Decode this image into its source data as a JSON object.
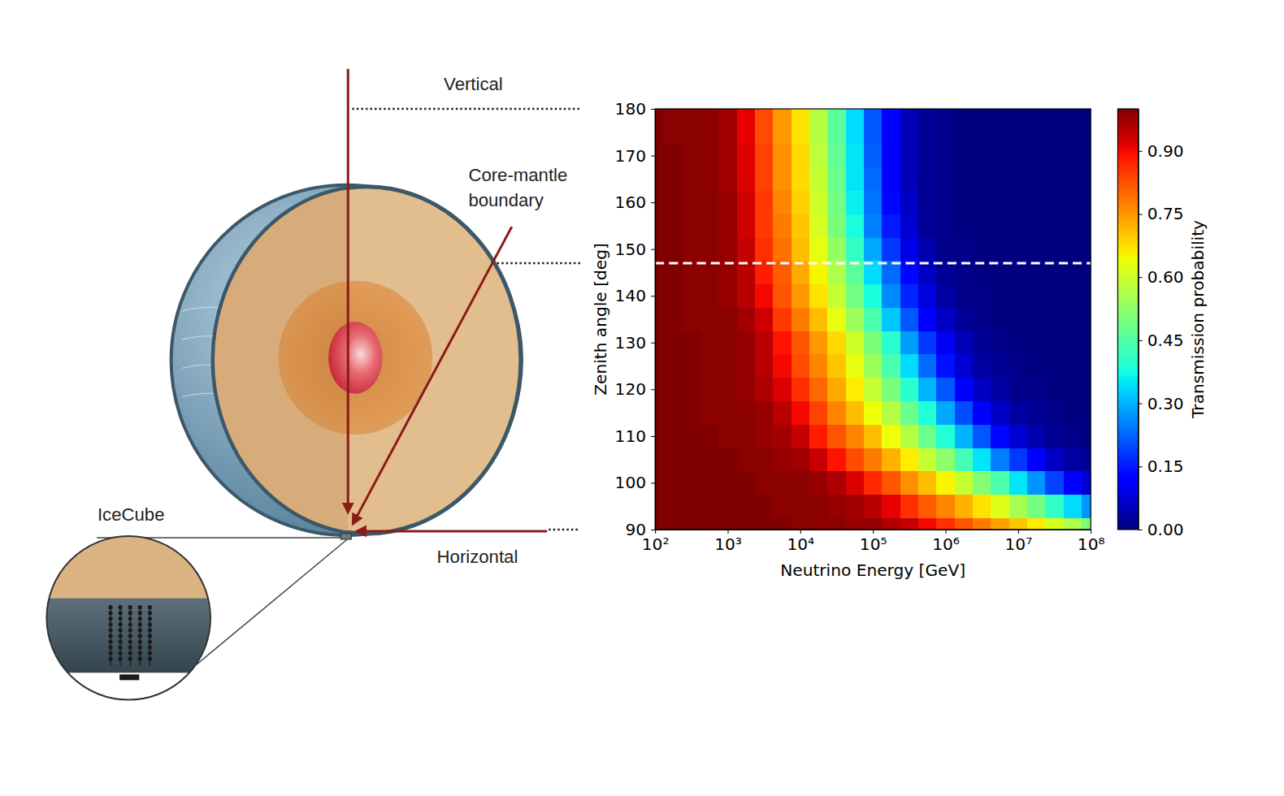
{
  "chart_data": {
    "type": "heatmap",
    "x_label": "Neutrino Energy [GeV]",
    "y_label": "Zenith angle [deg]",
    "log": "x",
    "xlim": [
      100,
      100000000
    ],
    "ylim": [
      90,
      180
    ],
    "xticks": [
      {
        "value": 100,
        "label": "10²"
      },
      {
        "value": 1000,
        "label": "10³"
      },
      {
        "value": 10000,
        "label": "10⁴"
      },
      {
        "value": 100000,
        "label": "10⁵"
      },
      {
        "value": 1000000,
        "label": "10⁶"
      },
      {
        "value": 10000000,
        "label": "10⁷"
      },
      {
        "value": 100000000,
        "label": "10⁸"
      }
    ],
    "yticks": [
      90,
      100,
      110,
      120,
      130,
      140,
      150,
      160,
      170,
      180
    ],
    "x": [
      100,
      177.83,
      316.23,
      562.34,
      1000,
      1778.3,
      3162.3,
      5623.4,
      10000,
      17783,
      31623,
      56234,
      100000,
      177830,
      316230,
      562340,
      1000000,
      1778300,
      3162300,
      5623400,
      10000000,
      17783000,
      31623000,
      56234000,
      100000000
    ],
    "y": [
      90,
      95,
      100,
      105,
      110,
      115,
      120,
      125,
      130,
      135,
      140,
      145,
      150,
      155,
      160,
      165,
      170,
      175,
      180
    ],
    "cells": [
      [
        1,
        1,
        1,
        1,
        1,
        1,
        1,
        1,
        0.99,
        0.99,
        0.99,
        0.98,
        0.98,
        0.96,
        0.94,
        0.9,
        0.86,
        0.82,
        0.78,
        0.74,
        0.7,
        0.66,
        0.61,
        0.56,
        0.5
      ],
      [
        1,
        1,
        1,
        1,
        1,
        1,
        1,
        0.99,
        0.99,
        0.99,
        0.98,
        0.97,
        0.95,
        0.91,
        0.86,
        0.81,
        0.77,
        0.72,
        0.67,
        0.62,
        0.55,
        0.49,
        0.41,
        0.34,
        0.27
      ],
      [
        1,
        1,
        1,
        1,
        1,
        1,
        0.99,
        0.99,
        0.99,
        0.98,
        0.96,
        0.92,
        0.87,
        0.82,
        0.76,
        0.71,
        0.65,
        0.59,
        0.51,
        0.44,
        0.35,
        0.27,
        0.19,
        0.12,
        0.07
      ],
      [
        1,
        1,
        1,
        1,
        1,
        0.99,
        0.99,
        0.98,
        0.97,
        0.94,
        0.89,
        0.83,
        0.78,
        0.72,
        0.66,
        0.59,
        0.52,
        0.43,
        0.35,
        0.25,
        0.18,
        0.11,
        0.06,
        0.03,
        0.02
      ],
      [
        1,
        1,
        1,
        1,
        0.99,
        0.99,
        0.98,
        0.97,
        0.94,
        0.88,
        0.82,
        0.77,
        0.71,
        0.64,
        0.57,
        0.48,
        0.39,
        0.3,
        0.21,
        0.13,
        0.07,
        0.04,
        0.02,
        0.01,
        0
      ],
      [
        1,
        1,
        1,
        0.99,
        0.99,
        0.99,
        0.98,
        0.95,
        0.9,
        0.84,
        0.77,
        0.71,
        0.64,
        0.57,
        0.48,
        0.39,
        0.29,
        0.2,
        0.12,
        0.06,
        0.03,
        0.02,
        0.01,
        0,
        0
      ],
      [
        1,
        1,
        1,
        0.99,
        0.99,
        0.98,
        0.96,
        0.92,
        0.86,
        0.8,
        0.73,
        0.66,
        0.59,
        0.5,
        0.4,
        0.3,
        0.21,
        0.12,
        0.06,
        0.03,
        0.01,
        0.01,
        0,
        0,
        0
      ],
      [
        1,
        1,
        1,
        0.99,
        0.99,
        0.98,
        0.95,
        0.9,
        0.83,
        0.77,
        0.7,
        0.63,
        0.54,
        0.44,
        0.34,
        0.23,
        0.14,
        0.07,
        0.03,
        0.02,
        0.01,
        0,
        0,
        0,
        0
      ],
      [
        1,
        1,
        1,
        0.99,
        0.99,
        0.98,
        0.95,
        0.89,
        0.82,
        0.75,
        0.68,
        0.6,
        0.5,
        0.4,
        0.28,
        0.18,
        0.1,
        0.05,
        0.02,
        0.01,
        0,
        0,
        0,
        0,
        0
      ],
      [
        1,
        1,
        0.99,
        0.99,
        0.99,
        0.97,
        0.93,
        0.85,
        0.78,
        0.71,
        0.63,
        0.54,
        0.44,
        0.32,
        0.21,
        0.12,
        0.06,
        0.02,
        0.01,
        0,
        0,
        0,
        0,
        0,
        0
      ],
      [
        1,
        1,
        0.99,
        0.99,
        0.98,
        0.95,
        0.9,
        0.82,
        0.75,
        0.67,
        0.59,
        0.49,
        0.38,
        0.26,
        0.16,
        0.08,
        0.03,
        0.01,
        0.01,
        0,
        0,
        0,
        0,
        0,
        0
      ],
      [
        1,
        1,
        0.99,
        0.99,
        0.98,
        0.95,
        0.88,
        0.81,
        0.73,
        0.65,
        0.56,
        0.46,
        0.34,
        0.23,
        0.13,
        0.06,
        0.02,
        0.01,
        0,
        0,
        0,
        0,
        0,
        0,
        0
      ],
      [
        1,
        1,
        0.99,
        0.99,
        0.98,
        0.94,
        0.86,
        0.79,
        0.71,
        0.63,
        0.53,
        0.41,
        0.29,
        0.18,
        0.09,
        0.04,
        0.01,
        0.01,
        0,
        0,
        0,
        0,
        0,
        0,
        0
      ],
      [
        1,
        1,
        0.99,
        0.99,
        0.98,
        0.93,
        0.85,
        0.78,
        0.7,
        0.61,
        0.5,
        0.38,
        0.25,
        0.15,
        0.07,
        0.02,
        0.01,
        0,
        0,
        0,
        0,
        0,
        0,
        0,
        0
      ],
      [
        1,
        1,
        0.99,
        0.99,
        0.98,
        0.93,
        0.85,
        0.77,
        0.69,
        0.6,
        0.49,
        0.36,
        0.24,
        0.13,
        0.06,
        0.02,
        0.01,
        0,
        0,
        0,
        0,
        0,
        0,
        0,
        0
      ],
      [
        1,
        1,
        0.99,
        0.99,
        0.97,
        0.92,
        0.84,
        0.76,
        0.68,
        0.59,
        0.48,
        0.35,
        0.23,
        0.12,
        0.05,
        0.02,
        0.01,
        0,
        0,
        0,
        0,
        0,
        0,
        0,
        0
      ],
      [
        1,
        1,
        0.99,
        0.99,
        0.97,
        0.92,
        0.84,
        0.76,
        0.68,
        0.58,
        0.47,
        0.35,
        0.22,
        0.12,
        0.05,
        0.02,
        0.01,
        0,
        0,
        0,
        0,
        0,
        0,
        0,
        0
      ],
      [
        1,
        0.99,
        0.99,
        0.99,
        0.97,
        0.91,
        0.83,
        0.75,
        0.67,
        0.57,
        0.46,
        0.34,
        0.21,
        0.11,
        0.05,
        0.02,
        0.01,
        0,
        0,
        0,
        0,
        0,
        0,
        0,
        0
      ],
      [
        1,
        0.99,
        0.99,
        0.99,
        0.97,
        0.91,
        0.83,
        0.75,
        0.67,
        0.57,
        0.46,
        0.34,
        0.21,
        0.11,
        0.05,
        0.02,
        0.01,
        0,
        0,
        0,
        0,
        0,
        0,
        0,
        0
      ]
    ],
    "core_mantle_boundary_angle": 147,
    "colorbar": {
      "label": "Transmission probability",
      "range": [
        0,
        1
      ],
      "ticks": [
        {
          "value": 0,
          "label": "0.00"
        },
        {
          "value": 0.15,
          "label": "0.15"
        },
        {
          "value": 0.3,
          "label": "0.30"
        },
        {
          "value": 0.45,
          "label": "0.45"
        },
        {
          "value": 0.6,
          "label": "0.60"
        },
        {
          "value": 0.75,
          "label": "0.75"
        },
        {
          "value": 0.9,
          "label": "0.90"
        }
      ]
    }
  },
  "diagram": {
    "vertical_label": "Vertical",
    "core_mantle_label": "Core-mantle boundary",
    "horizontal_label": "Horizontal",
    "detector_label": "IceCube"
  }
}
